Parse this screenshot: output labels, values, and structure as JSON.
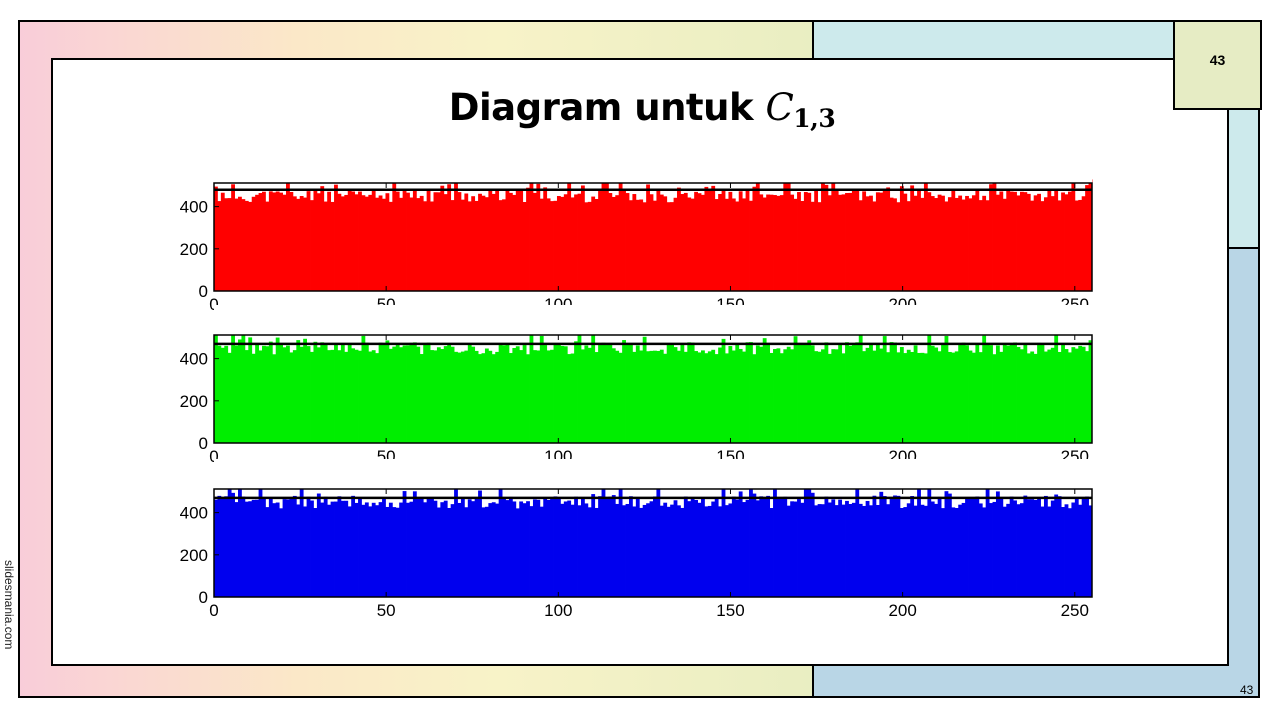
{
  "slide": {
    "title_main": "Diagram untuk ",
    "title_var": "C",
    "title_sub": "1,3",
    "page_number": "43",
    "page_number_corner": "43",
    "watermark": "slidesmania.com"
  },
  "colors": {
    "band_pink": "#f9cdd9",
    "band_yellow": "#f8f3c8",
    "band_teal": "#cdeaec",
    "band_blue": "#b9d6e6",
    "page_box": "#e6ecc4"
  },
  "chart_data": [
    {
      "type": "bar",
      "channel": "red",
      "color": "#ff0000",
      "xlim": [
        0,
        255
      ],
      "ylim": [
        0,
        512
      ],
      "xticks": [
        "0",
        "50",
        "100",
        "150",
        "200",
        "250"
      ],
      "yticks": [
        "0",
        "200",
        "400"
      ],
      "reference_line": 480,
      "bins": 256,
      "range_min": 420,
      "range_max": 530,
      "seed": 11
    },
    {
      "type": "bar",
      "channel": "green",
      "color": "#00ee00",
      "xlim": [
        0,
        255
      ],
      "ylim": [
        0,
        512
      ],
      "xticks": [
        "0",
        "50",
        "100",
        "150",
        "200",
        "250"
      ],
      "yticks": [
        "0",
        "200",
        "400"
      ],
      "reference_line": 470,
      "bins": 256,
      "range_min": 420,
      "range_max": 530,
      "seed": 23
    },
    {
      "type": "bar",
      "channel": "blue",
      "color": "#0000ee",
      "xlim": [
        0,
        255
      ],
      "ylim": [
        0,
        512
      ],
      "xticks": [
        "0",
        "50",
        "100",
        "150",
        "200",
        "250"
      ],
      "yticks": [
        "0",
        "200",
        "400"
      ],
      "reference_line": 470,
      "bins": 256,
      "range_min": 420,
      "range_max": 530,
      "seed": 37
    }
  ]
}
